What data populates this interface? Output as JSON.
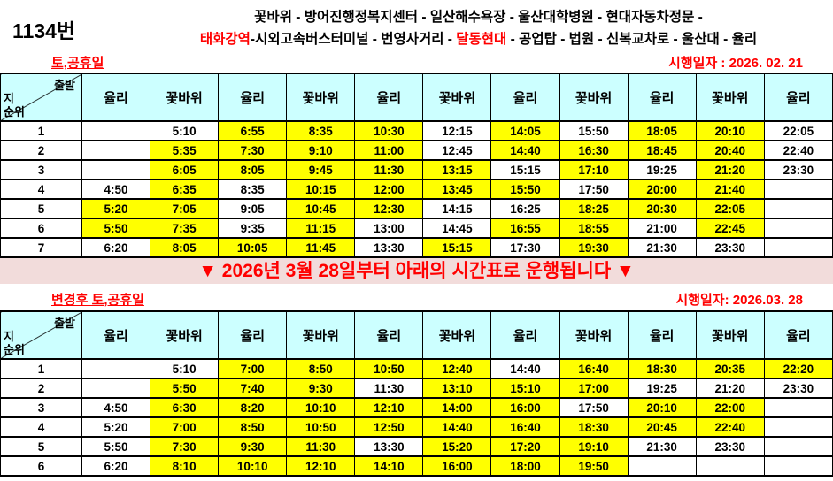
{
  "route": {
    "number": "1134번",
    "line1": "꽃바위 - 방어진행정복지센터 - 일산해수욕장 - 울산대학병원 - 현대자동차정문 -",
    "line2_red1": "태화강역",
    "line2_mid": "-시외고속버스터미널 - 번영사거리 - ",
    "line2_red2": "달동현대",
    "line2_tail": " - 공업탑 - 법원 - 신복교차로 - 울산대 - 율리"
  },
  "banner": "▼ 2026년 3월 28일부터 아래의 시간표로 운행됩니다 ▼",
  "corner": {
    "top": "출발",
    "left": "지",
    "bottom": "순위"
  },
  "colors": {
    "highlight_yellow": "#FFFF00",
    "header_cyan": "#CCFFFF",
    "accent_red": "#FF0000",
    "banner_pink": "#F2DCDB"
  },
  "tables": [
    {
      "label": "토,공휴일",
      "effective": "시행일자 : 2026. 02. 21",
      "columns": [
        "율리",
        "꽃바위",
        "율리",
        "꽃바위",
        "율리",
        "꽃바위",
        "율리",
        "꽃바위",
        "율리",
        "꽃바위",
        "율리"
      ],
      "rows": [
        {
          "no": "1",
          "cells": [
            {
              "t": "",
              "h": 0
            },
            {
              "t": "5:10",
              "h": 0
            },
            {
              "t": "6:55",
              "h": 1
            },
            {
              "t": "8:35",
              "h": 1
            },
            {
              "t": "10:30",
              "h": 1
            },
            {
              "t": "12:15",
              "h": 0
            },
            {
              "t": "14:05",
              "h": 1
            },
            {
              "t": "15:50",
              "h": 0
            },
            {
              "t": "18:05",
              "h": 1
            },
            {
              "t": "20:10",
              "h": 1
            },
            {
              "t": "22:05",
              "h": 0
            }
          ]
        },
        {
          "no": "2",
          "cells": [
            {
              "t": "",
              "h": 0
            },
            {
              "t": "5:35",
              "h": 1
            },
            {
              "t": "7:30",
              "h": 1
            },
            {
              "t": "9:10",
              "h": 1
            },
            {
              "t": "11:00",
              "h": 1
            },
            {
              "t": "12:45",
              "h": 0
            },
            {
              "t": "14:40",
              "h": 1
            },
            {
              "t": "16:30",
              "h": 1
            },
            {
              "t": "18:45",
              "h": 1
            },
            {
              "t": "20:40",
              "h": 1
            },
            {
              "t": "22:40",
              "h": 0
            }
          ]
        },
        {
          "no": "3",
          "cells": [
            {
              "t": "",
              "h": 0
            },
            {
              "t": "6:05",
              "h": 1
            },
            {
              "t": "8:05",
              "h": 1
            },
            {
              "t": "9:45",
              "h": 1
            },
            {
              "t": "11:30",
              "h": 1
            },
            {
              "t": "13:15",
              "h": 1
            },
            {
              "t": "15:15",
              "h": 0
            },
            {
              "t": "17:10",
              "h": 1
            },
            {
              "t": "19:25",
              "h": 0
            },
            {
              "t": "21:20",
              "h": 1
            },
            {
              "t": "23:30",
              "h": 0
            }
          ]
        },
        {
          "no": "4",
          "cells": [
            {
              "t": "4:50",
              "h": 0
            },
            {
              "t": "6:35",
              "h": 1
            },
            {
              "t": "8:35",
              "h": 0
            },
            {
              "t": "10:15",
              "h": 1
            },
            {
              "t": "12:00",
              "h": 1
            },
            {
              "t": "13:45",
              "h": 1
            },
            {
              "t": "15:50",
              "h": 1
            },
            {
              "t": "17:50",
              "h": 0
            },
            {
              "t": "20:00",
              "h": 1
            },
            {
              "t": "21:40",
              "h": 1
            },
            {
              "t": "",
              "h": 0
            }
          ]
        },
        {
          "no": "5",
          "cells": [
            {
              "t": "5:20",
              "h": 1
            },
            {
              "t": "7:05",
              "h": 1
            },
            {
              "t": "9:05",
              "h": 0
            },
            {
              "t": "10:45",
              "h": 1
            },
            {
              "t": "12:30",
              "h": 1
            },
            {
              "t": "14:15",
              "h": 0
            },
            {
              "t": "16:25",
              "h": 0
            },
            {
              "t": "18:25",
              "h": 1
            },
            {
              "t": "20:30",
              "h": 1
            },
            {
              "t": "22:05",
              "h": 1
            },
            {
              "t": "",
              "h": 0
            }
          ]
        },
        {
          "no": "6",
          "cells": [
            {
              "t": "5:50",
              "h": 1
            },
            {
              "t": "7:35",
              "h": 1
            },
            {
              "t": "9:35",
              "h": 0
            },
            {
              "t": "11:15",
              "h": 1
            },
            {
              "t": "13:00",
              "h": 0
            },
            {
              "t": "14:45",
              "h": 0
            },
            {
              "t": "16:55",
              "h": 1
            },
            {
              "t": "18:55",
              "h": 1
            },
            {
              "t": "21:00",
              "h": 0
            },
            {
              "t": "22:45",
              "h": 1
            },
            {
              "t": "",
              "h": 0
            }
          ]
        },
        {
          "no": "7",
          "cells": [
            {
              "t": "6:20",
              "h": 0
            },
            {
              "t": "8:05",
              "h": 1
            },
            {
              "t": "10:05",
              "h": 1
            },
            {
              "t": "11:45",
              "h": 1
            },
            {
              "t": "13:30",
              "h": 0
            },
            {
              "t": "15:15",
              "h": 1
            },
            {
              "t": "17:30",
              "h": 0
            },
            {
              "t": "19:30",
              "h": 1
            },
            {
              "t": "21:30",
              "h": 0
            },
            {
              "t": "23:30",
              "h": 0
            },
            {
              "t": "",
              "h": 0
            }
          ]
        }
      ]
    },
    {
      "label": "변경후 토,공휴일",
      "effective": "시행일자: 2026.03. 28",
      "columns": [
        "율리",
        "꽃바위",
        "율리",
        "꽃바위",
        "율리",
        "꽃바위",
        "율리",
        "꽃바위",
        "율리",
        "꽃바위",
        "율리"
      ],
      "rows": [
        {
          "no": "1",
          "cells": [
            {
              "t": "",
              "h": 0
            },
            {
              "t": "5:10",
              "h": 0
            },
            {
              "t": "7:00",
              "h": 1
            },
            {
              "t": "8:50",
              "h": 1
            },
            {
              "t": "10:50",
              "h": 1
            },
            {
              "t": "12:40",
              "h": 1
            },
            {
              "t": "14:40",
              "h": 0
            },
            {
              "t": "16:40",
              "h": 1
            },
            {
              "t": "18:30",
              "h": 1
            },
            {
              "t": "20:35",
              "h": 1
            },
            {
              "t": "22:20",
              "h": 1
            }
          ]
        },
        {
          "no": "2",
          "cells": [
            {
              "t": "",
              "h": 0
            },
            {
              "t": "5:50",
              "h": 1
            },
            {
              "t": "7:40",
              "h": 1
            },
            {
              "t": "9:30",
              "h": 1
            },
            {
              "t": "11:30",
              "h": 0
            },
            {
              "t": "13:10",
              "h": 1
            },
            {
              "t": "15:10",
              "h": 1
            },
            {
              "t": "17:00",
              "h": 1
            },
            {
              "t": "19:25",
              "h": 0
            },
            {
              "t": "21:20",
              "h": 0
            },
            {
              "t": "23:30",
              "h": 0
            }
          ]
        },
        {
          "no": "3",
          "cells": [
            {
              "t": "4:50",
              "h": 0
            },
            {
              "t": "6:30",
              "h": 1
            },
            {
              "t": "8:20",
              "h": 1
            },
            {
              "t": "10:10",
              "h": 1
            },
            {
              "t": "12:10",
              "h": 1
            },
            {
              "t": "14:00",
              "h": 1
            },
            {
              "t": "16:00",
              "h": 1
            },
            {
              "t": "17:50",
              "h": 0
            },
            {
              "t": "20:10",
              "h": 1
            },
            {
              "t": "22:00",
              "h": 1
            },
            {
              "t": "",
              "h": 0
            }
          ]
        },
        {
          "no": "4",
          "cells": [
            {
              "t": "5:20",
              "h": 0
            },
            {
              "t": "7:00",
              "h": 1
            },
            {
              "t": "8:50",
              "h": 1
            },
            {
              "t": "10:50",
              "h": 1
            },
            {
              "t": "12:50",
              "h": 1
            },
            {
              "t": "14:40",
              "h": 1
            },
            {
              "t": "16:40",
              "h": 1
            },
            {
              "t": "18:30",
              "h": 1
            },
            {
              "t": "20:45",
              "h": 1
            },
            {
              "t": "22:40",
              "h": 1
            },
            {
              "t": "",
              "h": 0
            }
          ]
        },
        {
          "no": "5",
          "cells": [
            {
              "t": "5:50",
              "h": 0
            },
            {
              "t": "7:30",
              "h": 1
            },
            {
              "t": "9:30",
              "h": 1
            },
            {
              "t": "11:30",
              "h": 1
            },
            {
              "t": "13:30",
              "h": 0
            },
            {
              "t": "15:20",
              "h": 1
            },
            {
              "t": "17:20",
              "h": 1
            },
            {
              "t": "19:10",
              "h": 1
            },
            {
              "t": "21:30",
              "h": 0
            },
            {
              "t": "23:30",
              "h": 0
            },
            {
              "t": "",
              "h": 0
            }
          ]
        },
        {
          "no": "6",
          "cells": [
            {
              "t": "6:20",
              "h": 0
            },
            {
              "t": "8:10",
              "h": 1
            },
            {
              "t": "10:10",
              "h": 1
            },
            {
              "t": "12:10",
              "h": 1
            },
            {
              "t": "14:10",
              "h": 1
            },
            {
              "t": "16:00",
              "h": 1
            },
            {
              "t": "18:00",
              "h": 1
            },
            {
              "t": "19:50",
              "h": 1
            },
            {
              "t": "",
              "h": 0
            },
            {
              "t": "",
              "h": 0
            },
            {
              "t": "",
              "h": 0
            }
          ]
        }
      ]
    }
  ]
}
